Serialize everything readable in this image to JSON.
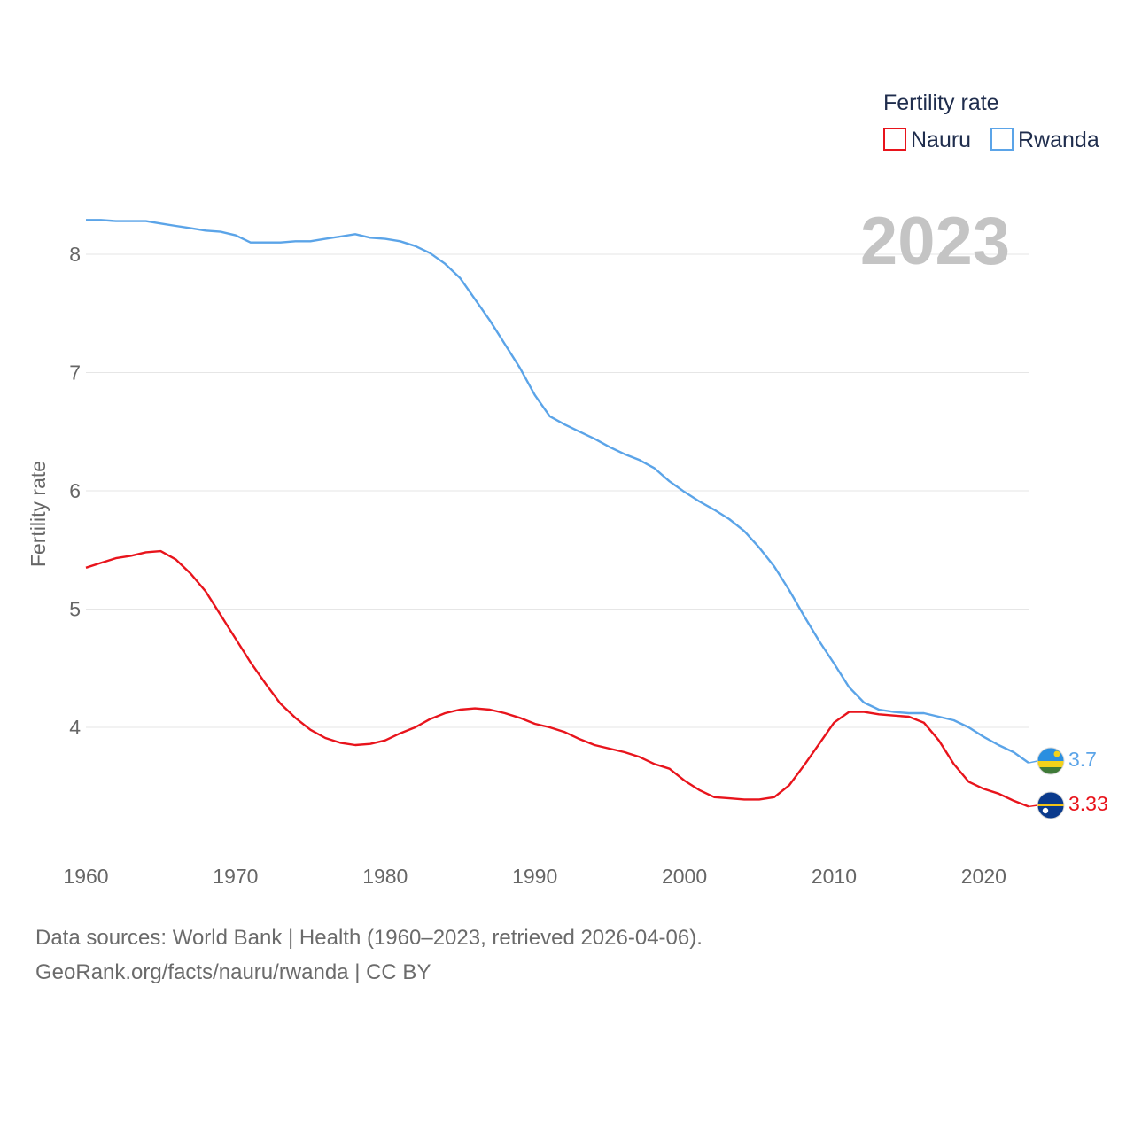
{
  "chart_data": {
    "type": "line",
    "legend_title": "Fertility rate",
    "ylabel": "Fertility rate",
    "xlabel": "",
    "current_year": "2023",
    "xlim": [
      1960,
      2023
    ],
    "ylim": [
      3.0,
      8.5
    ],
    "x_ticks": [
      1960,
      1970,
      1980,
      1990,
      2000,
      2010,
      2020
    ],
    "y_ticks": [
      4,
      5,
      6,
      7,
      8
    ],
    "grid": true,
    "legend_position": "top-right",
    "years": [
      1960,
      1961,
      1962,
      1963,
      1964,
      1965,
      1966,
      1967,
      1968,
      1969,
      1970,
      1971,
      1972,
      1973,
      1974,
      1975,
      1976,
      1977,
      1978,
      1979,
      1980,
      1981,
      1982,
      1983,
      1984,
      1985,
      1986,
      1987,
      1988,
      1989,
      1990,
      1991,
      1992,
      1993,
      1994,
      1995,
      1996,
      1997,
      1998,
      1999,
      2000,
      2001,
      2002,
      2003,
      2004,
      2005,
      2006,
      2007,
      2008,
      2009,
      2010,
      2011,
      2012,
      2013,
      2014,
      2015,
      2016,
      2017,
      2018,
      2019,
      2020,
      2021,
      2022,
      2023
    ],
    "series": [
      {
        "name": "Nauru",
        "color": "#e8141c",
        "end_label": "3.33",
        "flag": "nauru-flag",
        "values": [
          5.35,
          5.39,
          5.43,
          5.45,
          5.48,
          5.49,
          5.42,
          5.3,
          5.15,
          4.95,
          4.75,
          4.55,
          4.37,
          4.2,
          4.08,
          3.98,
          3.91,
          3.87,
          3.85,
          3.86,
          3.89,
          3.95,
          4.0,
          4.07,
          4.12,
          4.15,
          4.16,
          4.15,
          4.12,
          4.08,
          4.03,
          4.0,
          3.96,
          3.9,
          3.85,
          3.82,
          3.79,
          3.75,
          3.69,
          3.65,
          3.55,
          3.47,
          3.41,
          3.4,
          3.39,
          3.39,
          3.41,
          3.51,
          3.68,
          3.86,
          4.04,
          4.13,
          4.13,
          4.11,
          4.1,
          4.09,
          4.04,
          3.89,
          3.69,
          3.54,
          3.48,
          3.44,
          3.38,
          3.33
        ]
      },
      {
        "name": "Rwanda",
        "color": "#5ba4e8",
        "end_label": "3.7",
        "flag": "rwanda-flag",
        "values": [
          8.29,
          8.29,
          8.28,
          8.28,
          8.28,
          8.26,
          8.24,
          8.22,
          8.2,
          8.19,
          8.16,
          8.1,
          8.1,
          8.1,
          8.11,
          8.11,
          8.13,
          8.15,
          8.17,
          8.14,
          8.13,
          8.11,
          8.07,
          8.01,
          7.92,
          7.8,
          7.62,
          7.44,
          7.24,
          7.04,
          6.81,
          6.63,
          6.56,
          6.5,
          6.44,
          6.37,
          6.31,
          6.26,
          6.19,
          6.08,
          5.99,
          5.91,
          5.84,
          5.76,
          5.66,
          5.52,
          5.36,
          5.16,
          4.94,
          4.73,
          4.54,
          4.34,
          4.21,
          4.15,
          4.13,
          4.12,
          4.12,
          4.09,
          4.06,
          4.0,
          3.92,
          3.85,
          3.79,
          3.7
        ]
      }
    ]
  },
  "footer": {
    "source_line": "Data sources: World Bank | Health (1960–2023, retrieved 2026-04-06).",
    "attribution_line": "GeoRank.org/facts/nauru/rwanda | CC BY"
  }
}
